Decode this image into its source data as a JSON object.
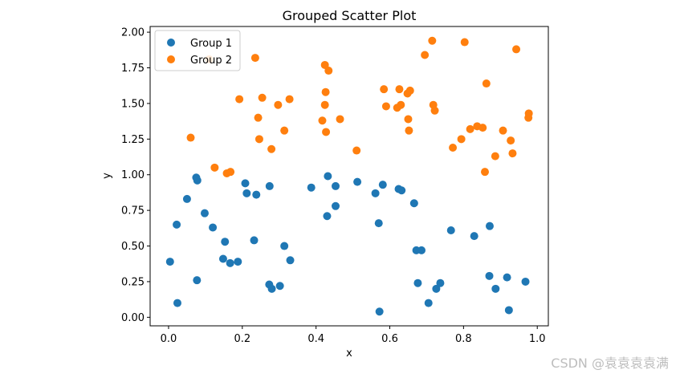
{
  "chart_data": {
    "type": "scatter",
    "title": "Grouped Scatter Plot",
    "xlabel": "x",
    "ylabel": "y",
    "xlim": [
      -0.05,
      1.03
    ],
    "ylim": [
      -0.06,
      2.04
    ],
    "xticks": [
      "0.0",
      "0.2",
      "0.4",
      "0.6",
      "0.8",
      "1.0"
    ],
    "yticks": [
      "0.00",
      "0.25",
      "0.50",
      "0.75",
      "1.00",
      "1.25",
      "1.50",
      "1.75",
      "2.00"
    ],
    "grid": false,
    "legend_position": "top-left",
    "series": [
      {
        "name": "Group 1",
        "color": "#1f77b4",
        "points": [
          [
            0.004,
            0.39
          ],
          [
            0.022,
            0.65
          ],
          [
            0.024,
            0.1
          ],
          [
            0.05,
            0.83
          ],
          [
            0.075,
            0.98
          ],
          [
            0.078,
            0.96
          ],
          [
            0.077,
            0.26
          ],
          [
            0.098,
            0.73
          ],
          [
            0.12,
            0.63
          ],
          [
            0.148,
            0.41
          ],
          [
            0.153,
            0.53
          ],
          [
            0.167,
            0.38
          ],
          [
            0.188,
            0.39
          ],
          [
            0.208,
            0.94
          ],
          [
            0.212,
            0.87
          ],
          [
            0.232,
            0.54
          ],
          [
            0.238,
            0.86
          ],
          [
            0.274,
            0.92
          ],
          [
            0.273,
            0.23
          ],
          [
            0.28,
            0.2
          ],
          [
            0.302,
            0.22
          ],
          [
            0.314,
            0.5
          ],
          [
            0.33,
            0.4
          ],
          [
            0.387,
            0.91
          ],
          [
            0.432,
            0.99
          ],
          [
            0.43,
            0.71
          ],
          [
            0.453,
            0.92
          ],
          [
            0.453,
            0.78
          ],
          [
            0.512,
            0.95
          ],
          [
            0.561,
            0.87
          ],
          [
            0.581,
            0.93
          ],
          [
            0.57,
            0.66
          ],
          [
            0.572,
            0.04
          ],
          [
            0.624,
            0.9
          ],
          [
            0.632,
            0.89
          ],
          [
            0.666,
            0.8
          ],
          [
            0.672,
            0.47
          ],
          [
            0.676,
            0.24
          ],
          [
            0.686,
            0.47
          ],
          [
            0.705,
            0.1
          ],
          [
            0.726,
            0.2
          ],
          [
            0.737,
            0.24
          ],
          [
            0.766,
            0.61
          ],
          [
            0.829,
            0.57
          ],
          [
            0.871,
            0.64
          ],
          [
            0.87,
            0.29
          ],
          [
            0.887,
            0.2
          ],
          [
            0.918,
            0.28
          ],
          [
            0.923,
            0.05
          ],
          [
            0.968,
            0.25
          ]
        ]
      },
      {
        "name": "Group 2",
        "color": "#ff7f0e",
        "points": [
          [
            0.06,
            1.26
          ],
          [
            0.11,
            1.81
          ],
          [
            0.125,
            1.05
          ],
          [
            0.158,
            1.01
          ],
          [
            0.168,
            1.02
          ],
          [
            0.192,
            1.53
          ],
          [
            0.235,
            1.82
          ],
          [
            0.243,
            1.4
          ],
          [
            0.246,
            1.25
          ],
          [
            0.254,
            1.54
          ],
          [
            0.279,
            1.18
          ],
          [
            0.297,
            1.49
          ],
          [
            0.314,
            1.31
          ],
          [
            0.328,
            1.53
          ],
          [
            0.417,
            1.38
          ],
          [
            0.424,
            1.77
          ],
          [
            0.426,
            1.58
          ],
          [
            0.424,
            1.49
          ],
          [
            0.427,
            1.3
          ],
          [
            0.434,
            1.73
          ],
          [
            0.465,
            1.39
          ],
          [
            0.51,
            1.17
          ],
          [
            0.584,
            1.6
          ],
          [
            0.59,
            1.48
          ],
          [
            0.62,
            1.47
          ],
          [
            0.626,
            1.6
          ],
          [
            0.63,
            1.49
          ],
          [
            0.648,
            1.57
          ],
          [
            0.65,
            1.39
          ],
          [
            0.652,
            1.31
          ],
          [
            0.655,
            1.59
          ],
          [
            0.695,
            1.84
          ],
          [
            0.715,
            1.94
          ],
          [
            0.718,
            1.49
          ],
          [
            0.722,
            1.45
          ],
          [
            0.771,
            1.19
          ],
          [
            0.794,
            1.25
          ],
          [
            0.803,
            1.93
          ],
          [
            0.818,
            1.32
          ],
          [
            0.837,
            1.34
          ],
          [
            0.852,
            1.33
          ],
          [
            0.858,
            1.02
          ],
          [
            0.862,
            1.64
          ],
          [
            0.886,
            1.13
          ],
          [
            0.907,
            1.31
          ],
          [
            0.928,
            1.24
          ],
          [
            0.933,
            1.15
          ],
          [
            0.943,
            1.88
          ],
          [
            0.976,
            1.4
          ],
          [
            0.977,
            1.43
          ]
        ]
      }
    ]
  },
  "watermark": "CSDN @袁袁袁袁满"
}
